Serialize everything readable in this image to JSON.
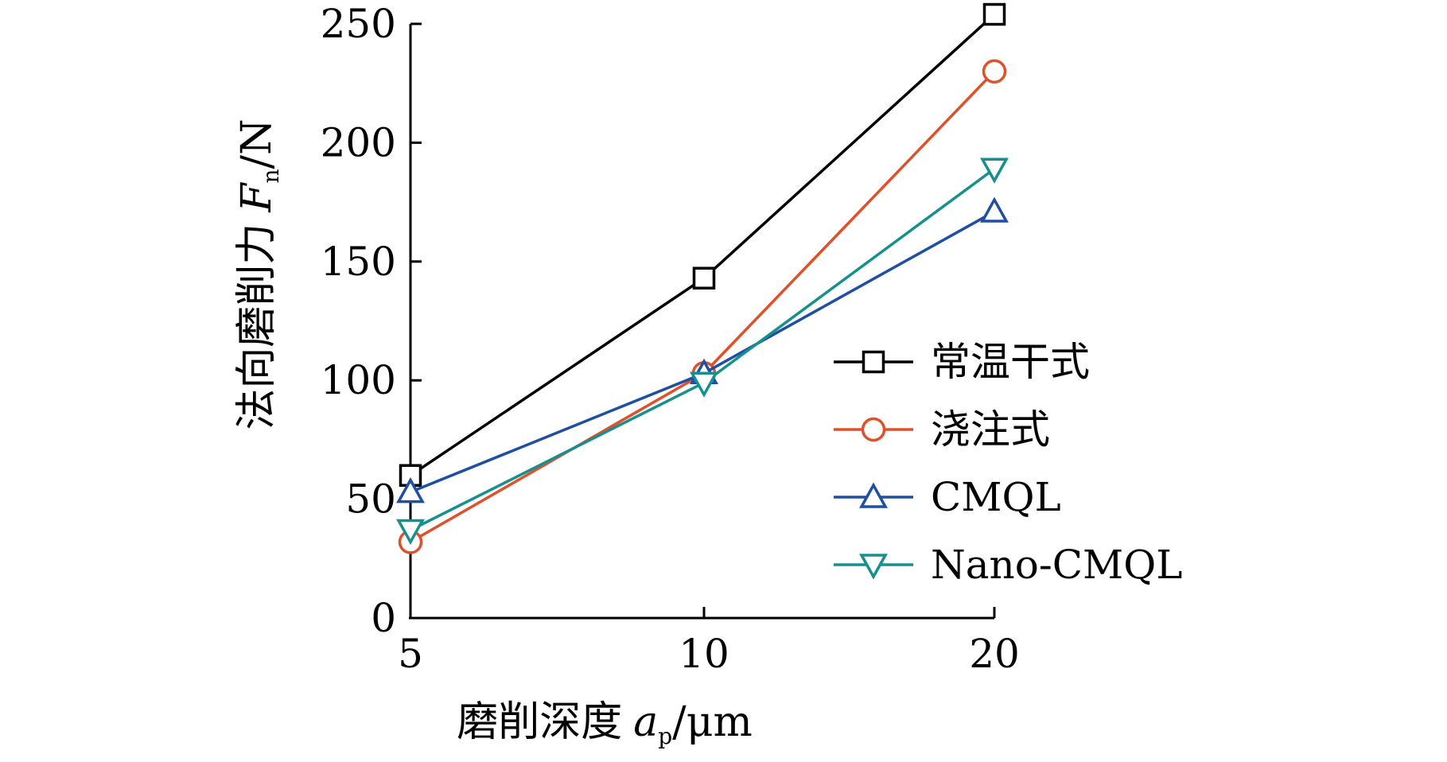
{
  "chart_data": {
    "type": "line",
    "x": [
      "5",
      "10",
      "20"
    ],
    "xlabel_prefix": "磨削深度",
    "xlabel_symbol": "a",
    "xlabel_sub": "p",
    "xlabel_unit": "/μm",
    "ylabel_prefix": "法向磨削力",
    "ylabel_symbol": "F",
    "ylabel_sub": "n",
    "ylabel_unit": "/N",
    "ylim": [
      0,
      250
    ],
    "yticks": [
      "0",
      "50",
      "100",
      "150",
      "200",
      "250"
    ],
    "grid": false,
    "legend_position": "right",
    "series": [
      {
        "name": "常温干式",
        "marker": "square",
        "color": "#000000",
        "values": [
          60,
          143,
          254
        ]
      },
      {
        "name": "浇注式",
        "marker": "circle",
        "color": "#e0502a",
        "values": [
          32,
          103,
          230
        ]
      },
      {
        "name": "CMQL",
        "marker": "triangle-up",
        "color": "#1f4fa3",
        "values": [
          53,
          103,
          171
        ]
      },
      {
        "name": "Nano-CMQL",
        "marker": "triangle-down",
        "color": "#15908e",
        "values": [
          37,
          99,
          189
        ]
      }
    ]
  }
}
